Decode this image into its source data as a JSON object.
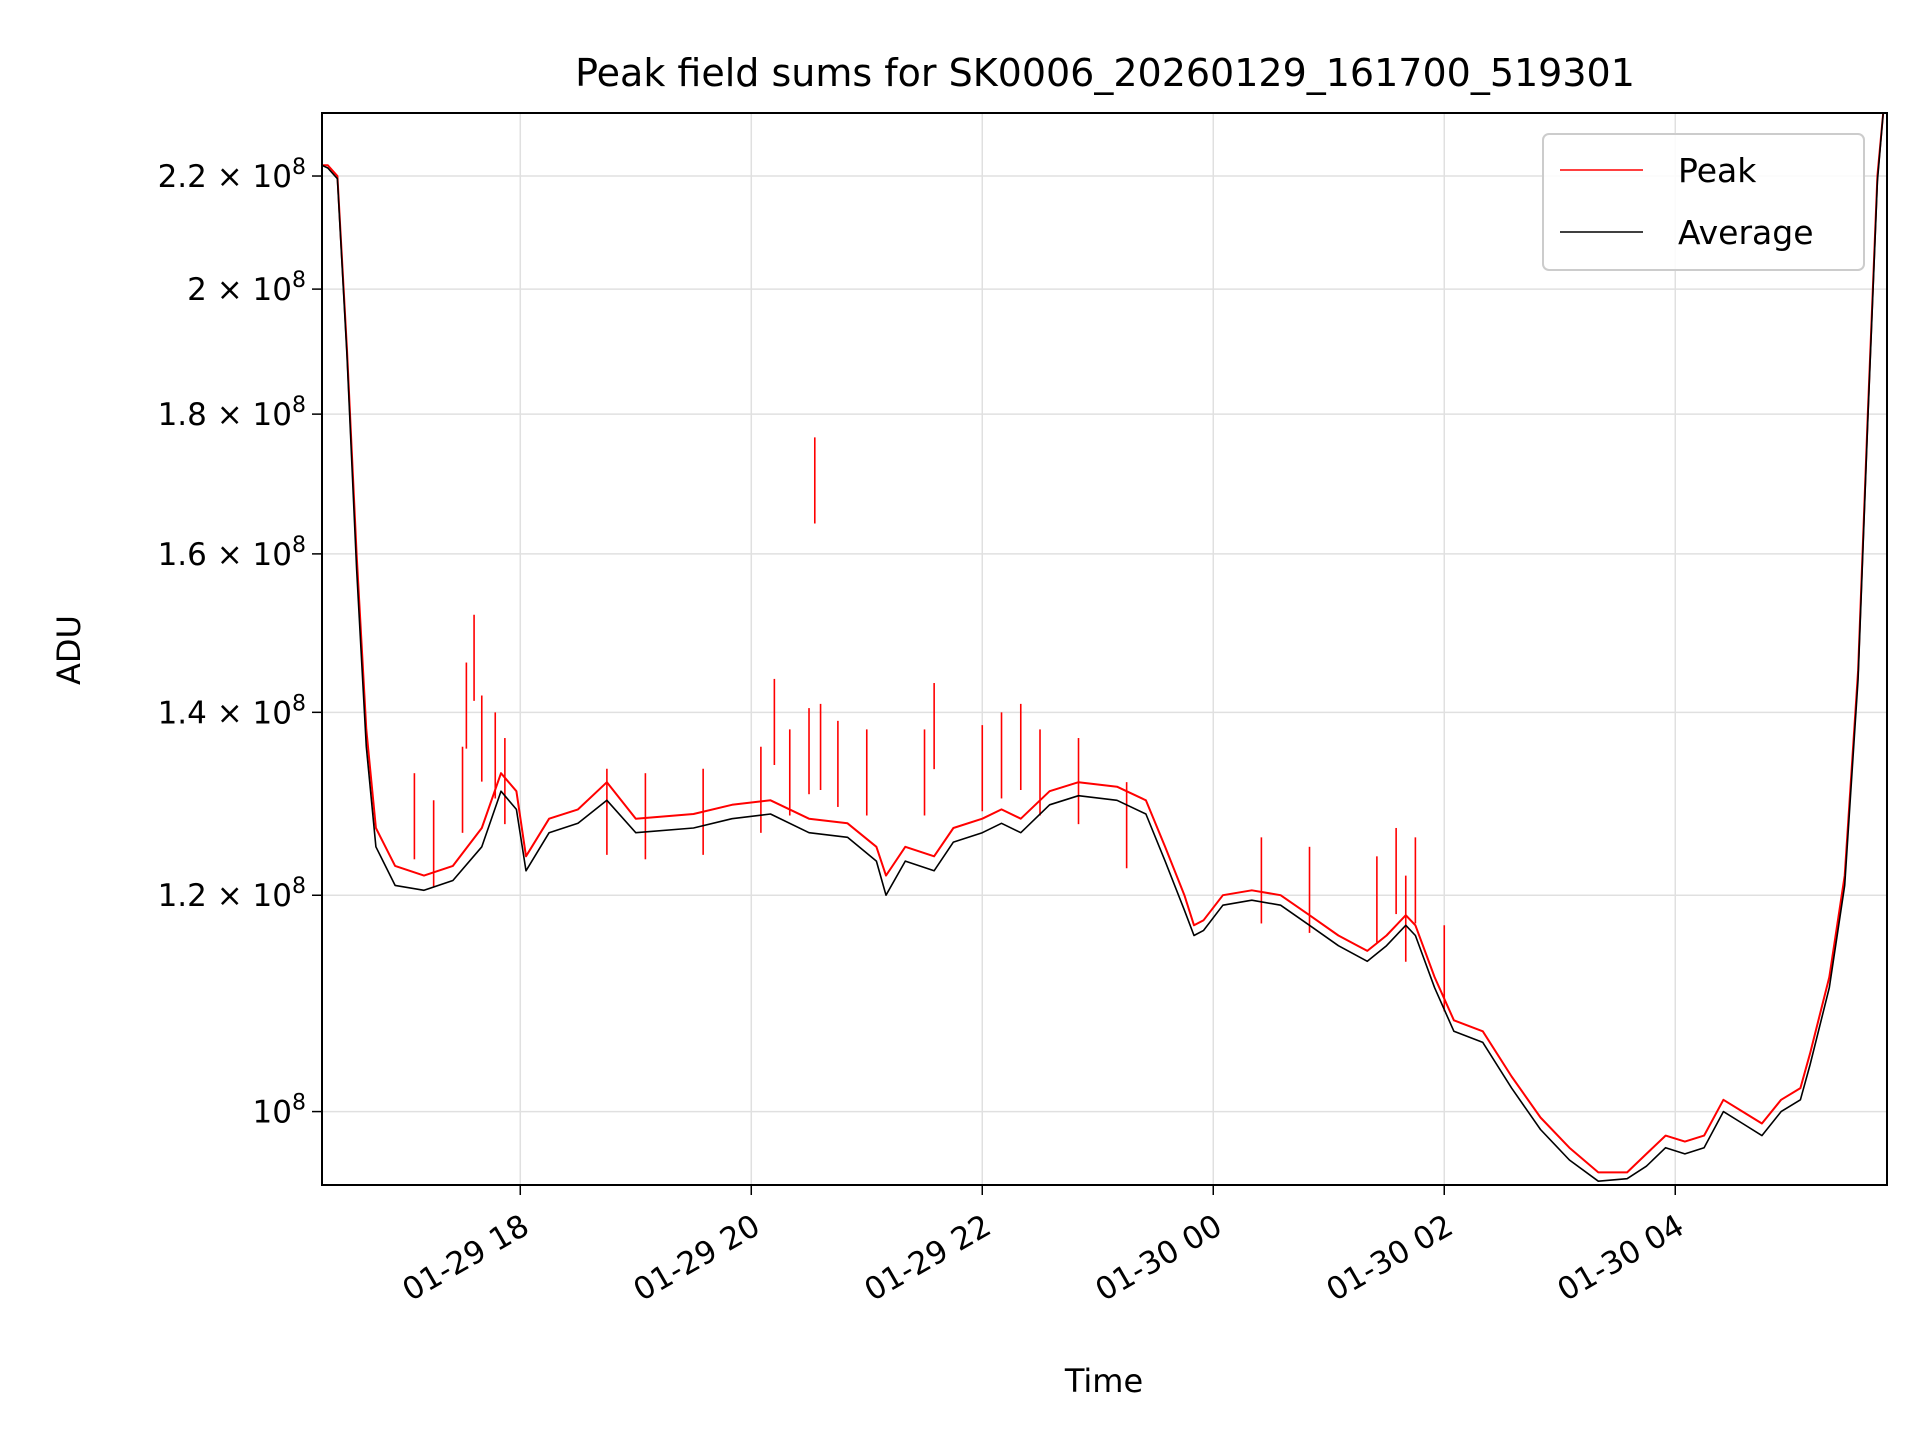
{
  "chart_data": {
    "type": "line",
    "title": "Peak field sums for SK0006_20260129_161700_519301",
    "xlabel": "Time",
    "ylabel": "ADU",
    "yscale": "log",
    "xlim": [
      "2026-01-29T16:17",
      "2026-01-30T05:50"
    ],
    "ylim": [
      94000000.0,
      232000000.0
    ],
    "grid": true,
    "legend_position": "top-right",
    "x_ticks": [
      {
        "t": "2026-01-29T18:00",
        "label": "01-29 18"
      },
      {
        "t": "2026-01-29T20:00",
        "label": "01-29 20"
      },
      {
        "t": "2026-01-29T22:00",
        "label": "01-29 22"
      },
      {
        "t": "2026-01-30T00:00",
        "label": "01-30 00"
      },
      {
        "t": "2026-01-30T02:00",
        "label": "01-30 02"
      },
      {
        "t": "2026-01-30T04:00",
        "label": "01-30 04"
      }
    ],
    "y_ticks": [
      {
        "v": 100000000,
        "mant": "",
        "exp": "8",
        "base": "10"
      },
      {
        "v": 120000000,
        "mant": "1.2",
        "exp": "8",
        "base": "10"
      },
      {
        "v": 140000000,
        "mant": "1.4",
        "exp": "8",
        "base": "10"
      },
      {
        "v": 160000000,
        "mant": "1.6",
        "exp": "8",
        "base": "10"
      },
      {
        "v": 180000000,
        "mant": "1.8",
        "exp": "8",
        "base": "10"
      },
      {
        "v": 200000000,
        "mant": "2",
        "exp": "8",
        "base": "10"
      },
      {
        "v": 220000000,
        "mant": "2.2",
        "exp": "8",
        "base": "10"
      }
    ],
    "series": [
      {
        "name": "Peak",
        "color": "#ff0000",
        "points": [
          [
            "2026-01-29T16:17",
            222000000.0
          ],
          [
            "2026-01-29T16:20",
            222000000.0
          ],
          [
            "2026-01-29T16:25",
            220000000.0
          ],
          [
            "2026-01-29T16:30",
            190000000.0
          ],
          [
            "2026-01-29T16:35",
            160000000.0
          ],
          [
            "2026-01-29T16:40",
            138000000.0
          ],
          [
            "2026-01-29T16:45",
            127000000.0
          ],
          [
            "2026-01-29T16:55",
            123000000.0
          ],
          [
            "2026-01-29T17:10",
            122000000.0
          ],
          [
            "2026-01-29T17:25",
            123000000.0
          ],
          [
            "2026-01-29T17:40",
            127000000.0
          ],
          [
            "2026-01-29T17:50",
            133000000.0
          ],
          [
            "2026-01-29T17:58",
            131000000.0
          ],
          [
            "2026-01-29T18:03",
            124000000.0
          ],
          [
            "2026-01-29T18:15",
            128000000.0
          ],
          [
            "2026-01-29T18:30",
            129000000.0
          ],
          [
            "2026-01-29T18:45",
            132000000.0
          ],
          [
            "2026-01-29T19:00",
            128000000.0
          ],
          [
            "2026-01-29T19:30",
            128500000.0
          ],
          [
            "2026-01-29T19:50",
            129500000.0
          ],
          [
            "2026-01-29T20:10",
            130000000.0
          ],
          [
            "2026-01-29T20:30",
            128000000.0
          ],
          [
            "2026-01-29T20:50",
            127500000.0
          ],
          [
            "2026-01-29T21:05",
            125000000.0
          ],
          [
            "2026-01-29T21:10",
            122000000.0
          ],
          [
            "2026-01-29T21:20",
            125000000.0
          ],
          [
            "2026-01-29T21:35",
            124000000.0
          ],
          [
            "2026-01-29T21:45",
            127000000.0
          ],
          [
            "2026-01-29T22:00",
            128000000.0
          ],
          [
            "2026-01-29T22:10",
            129000000.0
          ],
          [
            "2026-01-29T22:20",
            128000000.0
          ],
          [
            "2026-01-29T22:35",
            131000000.0
          ],
          [
            "2026-01-29T22:50",
            132000000.0
          ],
          [
            "2026-01-29T23:10",
            131500000.0
          ],
          [
            "2026-01-29T23:25",
            130000000.0
          ],
          [
            "2026-01-29T23:35",
            125000000.0
          ],
          [
            "2026-01-29T23:45",
            120000000.0
          ],
          [
            "2026-01-29T23:50",
            117000000.0
          ],
          [
            "2026-01-29T23:55",
            117500000.0
          ],
          [
            "2026-01-30T00:05",
            120000000.0
          ],
          [
            "2026-01-30T00:20",
            120500000.0
          ],
          [
            "2026-01-30T00:35",
            120000000.0
          ],
          [
            "2026-01-30T00:50",
            118000000.0
          ],
          [
            "2026-01-30T01:05",
            116000000.0
          ],
          [
            "2026-01-30T01:15",
            115000000.0
          ],
          [
            "2026-01-30T01:20",
            114500000.0
          ],
          [
            "2026-01-30T01:30",
            116000000.0
          ],
          [
            "2026-01-30T01:40",
            118000000.0
          ],
          [
            "2026-01-30T01:45",
            117000000.0
          ],
          [
            "2026-01-30T01:55",
            112000000.0
          ],
          [
            "2026-01-30T02:05",
            108000000.0
          ],
          [
            "2026-01-30T02:20",
            107000000.0
          ],
          [
            "2026-01-30T02:35",
            103000000.0
          ],
          [
            "2026-01-30T02:50",
            99500000.0
          ],
          [
            "2026-01-30T03:05",
            97000000.0
          ],
          [
            "2026-01-30T03:20",
            95000000.0
          ],
          [
            "2026-01-30T03:35",
            95000000.0
          ],
          [
            "2026-01-30T03:45",
            96500000.0
          ],
          [
            "2026-01-30T03:55",
            98000000.0
          ],
          [
            "2026-01-30T04:05",
            97500000.0
          ],
          [
            "2026-01-30T04:15",
            98000000.0
          ],
          [
            "2026-01-30T04:25",
            101000000.0
          ],
          [
            "2026-01-30T04:35",
            100000000.0
          ],
          [
            "2026-01-30T04:45",
            99000000.0
          ],
          [
            "2026-01-30T04:55",
            101000000.0
          ],
          [
            "2026-01-30T05:05",
            102000000.0
          ],
          [
            "2026-01-30T05:10",
            105000000.0
          ],
          [
            "2026-01-30T05:20",
            112000000.0
          ],
          [
            "2026-01-30T05:28",
            122000000.0
          ],
          [
            "2026-01-30T05:35",
            145000000.0
          ],
          [
            "2026-01-30T05:40",
            180000000.0
          ],
          [
            "2026-01-30T05:45",
            220000000.0
          ],
          [
            "2026-01-30T05:48",
            232000000.0
          ],
          [
            "2026-01-30T05:50",
            232000000.0
          ]
        ],
        "spikes": [
          [
            "2026-01-29T17:05",
            133000000.0
          ],
          [
            "2026-01-29T17:15",
            130000000.0
          ],
          [
            "2026-01-29T17:30",
            136000000.0
          ],
          [
            "2026-01-29T17:32",
            146000000.0
          ],
          [
            "2026-01-29T17:36",
            152000000.0
          ],
          [
            "2026-01-29T17:40",
            142000000.0
          ],
          [
            "2026-01-29T17:47",
            140000000.0
          ],
          [
            "2026-01-29T17:52",
            137000000.0
          ],
          [
            "2026-01-29T18:45",
            133500000.0
          ],
          [
            "2026-01-29T19:05",
            133000000.0
          ],
          [
            "2026-01-29T19:35",
            133500000.0
          ],
          [
            "2026-01-29T20:05",
            136000000.0
          ],
          [
            "2026-01-29T20:12",
            144000000.0
          ],
          [
            "2026-01-29T20:20",
            138000000.0
          ],
          [
            "2026-01-29T20:30",
            140500000.0
          ],
          [
            "2026-01-29T20:33",
            176500000.0
          ],
          [
            "2026-01-29T20:36",
            141000000.0
          ],
          [
            "2026-01-29T20:45",
            139000000.0
          ],
          [
            "2026-01-29T21:00",
            138000000.0
          ],
          [
            "2026-01-29T21:30",
            138000000.0
          ],
          [
            "2026-01-29T21:35",
            143500000.0
          ],
          [
            "2026-01-29T22:00",
            138500000.0
          ],
          [
            "2026-01-29T22:10",
            140000000.0
          ],
          [
            "2026-01-29T22:20",
            141000000.0
          ],
          [
            "2026-01-29T22:30",
            138000000.0
          ],
          [
            "2026-01-29T22:50",
            137000000.0
          ],
          [
            "2026-01-29T23:15",
            132000000.0
          ],
          [
            "2026-01-30T00:25",
            126000000.0
          ],
          [
            "2026-01-30T00:50",
            125000000.0
          ],
          [
            "2026-01-30T01:25",
            124000000.0
          ],
          [
            "2026-01-30T01:35",
            127000000.0
          ],
          [
            "2026-01-30T01:40",
            122000000.0
          ],
          [
            "2026-01-30T01:45",
            126000000.0
          ],
          [
            "2026-01-30T02:00",
            117000000.0
          ]
        ]
      },
      {
        "name": "Average",
        "color": "#000000",
        "points": [
          [
            "2026-01-29T16:17",
            222000000.0
          ],
          [
            "2026-01-29T16:20",
            221500000.0
          ],
          [
            "2026-01-29T16:25",
            219500000.0
          ],
          [
            "2026-01-29T16:30",
            189000000.0
          ],
          [
            "2026-01-29T16:35",
            158000000.0
          ],
          [
            "2026-01-29T16:40",
            136000000.0
          ],
          [
            "2026-01-29T16:45",
            125000000.0
          ],
          [
            "2026-01-29T16:55",
            121000000.0
          ],
          [
            "2026-01-29T17:10",
            120500000.0
          ],
          [
            "2026-01-29T17:25",
            121500000.0
          ],
          [
            "2026-01-29T17:40",
            125000000.0
          ],
          [
            "2026-01-29T17:50",
            131000000.0
          ],
          [
            "2026-01-29T17:58",
            129000000.0
          ],
          [
            "2026-01-29T18:03",
            122500000.0
          ],
          [
            "2026-01-29T18:15",
            126500000.0
          ],
          [
            "2026-01-29T18:30",
            127500000.0
          ],
          [
            "2026-01-29T18:45",
            130000000.0
          ],
          [
            "2026-01-29T19:00",
            126500000.0
          ],
          [
            "2026-01-29T19:30",
            127000000.0
          ],
          [
            "2026-01-29T19:50",
            128000000.0
          ],
          [
            "2026-01-29T20:10",
            128500000.0
          ],
          [
            "2026-01-29T20:30",
            126500000.0
          ],
          [
            "2026-01-29T20:50",
            126000000.0
          ],
          [
            "2026-01-29T21:05",
            123500000.0
          ],
          [
            "2026-01-29T21:10",
            120000000.0
          ],
          [
            "2026-01-29T21:20",
            123500000.0
          ],
          [
            "2026-01-29T21:35",
            122500000.0
          ],
          [
            "2026-01-29T21:45",
            125500000.0
          ],
          [
            "2026-01-29T22:00",
            126500000.0
          ],
          [
            "2026-01-29T22:10",
            127500000.0
          ],
          [
            "2026-01-29T22:20",
            126500000.0
          ],
          [
            "2026-01-29T22:35",
            129500000.0
          ],
          [
            "2026-01-29T22:50",
            130500000.0
          ],
          [
            "2026-01-29T23:10",
            130000000.0
          ],
          [
            "2026-01-29T23:25",
            128500000.0
          ],
          [
            "2026-01-29T23:35",
            123500000.0
          ],
          [
            "2026-01-29T23:45",
            118500000.0
          ],
          [
            "2026-01-29T23:50",
            116000000.0
          ],
          [
            "2026-01-29T23:55",
            116500000.0
          ],
          [
            "2026-01-30T00:05",
            119000000.0
          ],
          [
            "2026-01-30T00:20",
            119500000.0
          ],
          [
            "2026-01-30T00:35",
            119000000.0
          ],
          [
            "2026-01-30T00:50",
            117000000.0
          ],
          [
            "2026-01-30T01:05",
            115000000.0
          ],
          [
            "2026-01-30T01:15",
            114000000.0
          ],
          [
            "2026-01-30T01:20",
            113500000.0
          ],
          [
            "2026-01-30T01:30",
            115000000.0
          ],
          [
            "2026-01-30T01:40",
            117000000.0
          ],
          [
            "2026-01-30T01:45",
            116000000.0
          ],
          [
            "2026-01-30T01:55",
            111000000.0
          ],
          [
            "2026-01-30T02:05",
            107000000.0
          ],
          [
            "2026-01-30T02:20",
            106000000.0
          ],
          [
            "2026-01-30T02:35",
            102000000.0
          ],
          [
            "2026-01-30T02:50",
            98500000.0
          ],
          [
            "2026-01-30T03:05",
            96000000.0
          ],
          [
            "2026-01-30T03:20",
            94300000.0
          ],
          [
            "2026-01-30T03:35",
            94500000.0
          ],
          [
            "2026-01-30T03:45",
            95500000.0
          ],
          [
            "2026-01-30T03:55",
            97000000.0
          ],
          [
            "2026-01-30T04:05",
            96500000.0
          ],
          [
            "2026-01-30T04:15",
            97000000.0
          ],
          [
            "2026-01-30T04:25",
            100000000.0
          ],
          [
            "2026-01-30T04:35",
            99000000.0
          ],
          [
            "2026-01-30T04:45",
            98000000.0
          ],
          [
            "2026-01-30T04:55",
            100000000.0
          ],
          [
            "2026-01-30T05:05",
            101000000.0
          ],
          [
            "2026-01-30T05:10",
            104000000.0
          ],
          [
            "2026-01-30T05:20",
            111000000.0
          ],
          [
            "2026-01-30T05:28",
            121000000.0
          ],
          [
            "2026-01-30T05:35",
            144000000.0
          ],
          [
            "2026-01-30T05:40",
            179000000.0
          ],
          [
            "2026-01-30T05:45",
            219000000.0
          ],
          [
            "2026-01-30T05:48",
            232000000.0
          ],
          [
            "2026-01-30T05:50",
            232000000.0
          ]
        ]
      }
    ]
  }
}
